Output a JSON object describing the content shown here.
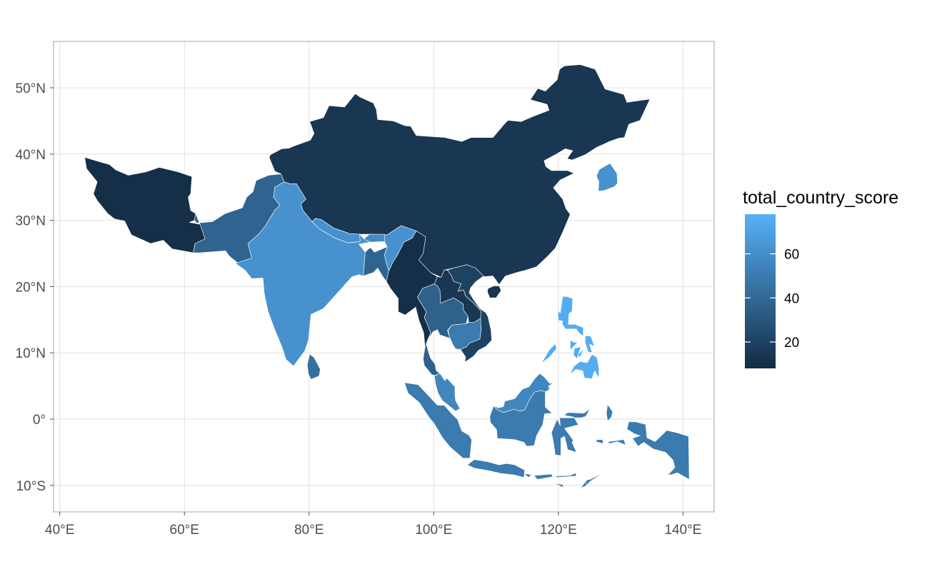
{
  "chart_data": {
    "type": "choropleth",
    "title": "",
    "xlabel": "",
    "ylabel": "",
    "legend": {
      "title": "total_country_score",
      "placement": "right",
      "breaks": [
        20,
        40,
        60
      ],
      "break_labels": [
        "20",
        "40",
        "60"
      ],
      "range": [
        8,
        78
      ],
      "color_low": "#132B43",
      "color_high": "#56B1F7"
    },
    "x_axis": {
      "range": [
        39,
        145
      ],
      "ticks": [
        40,
        60,
        80,
        100,
        120,
        140
      ],
      "tick_labels": [
        "40°E",
        "60°E",
        "80°E",
        "100°E",
        "120°E",
        "140°E"
      ]
    },
    "y_axis": {
      "range": [
        -14,
        57
      ],
      "ticks": [
        50,
        40,
        30,
        20,
        10,
        0,
        -10
      ],
      "tick_labels": [
        "50°N",
        "40°N",
        "30°N",
        "20°N",
        "10°N",
        "0°",
        "10°S"
      ]
    },
    "grid": true,
    "regions": [
      {
        "id": "iran",
        "value": 10
      },
      {
        "id": "china",
        "value": 14
      },
      {
        "id": "myanmar",
        "value": 10
      },
      {
        "id": "laos",
        "value": 14
      },
      {
        "id": "vietnam",
        "value": 20
      },
      {
        "id": "pakistan",
        "value": 38
      },
      {
        "id": "thailand",
        "value": 36
      },
      {
        "id": "bangladesh",
        "value": 38
      },
      {
        "id": "cambodia",
        "value": 50
      },
      {
        "id": "indonesia",
        "value": 50
      },
      {
        "id": "timor",
        "value": 50
      },
      {
        "id": "srilanka",
        "value": 44
      },
      {
        "id": "malaysia",
        "value": 56
      },
      {
        "id": "india",
        "value": 62
      },
      {
        "id": "nepal",
        "value": 62
      },
      {
        "id": "bhutan",
        "value": 58
      },
      {
        "id": "southkorea",
        "value": 62
      },
      {
        "id": "philippines",
        "value": 76
      }
    ]
  }
}
